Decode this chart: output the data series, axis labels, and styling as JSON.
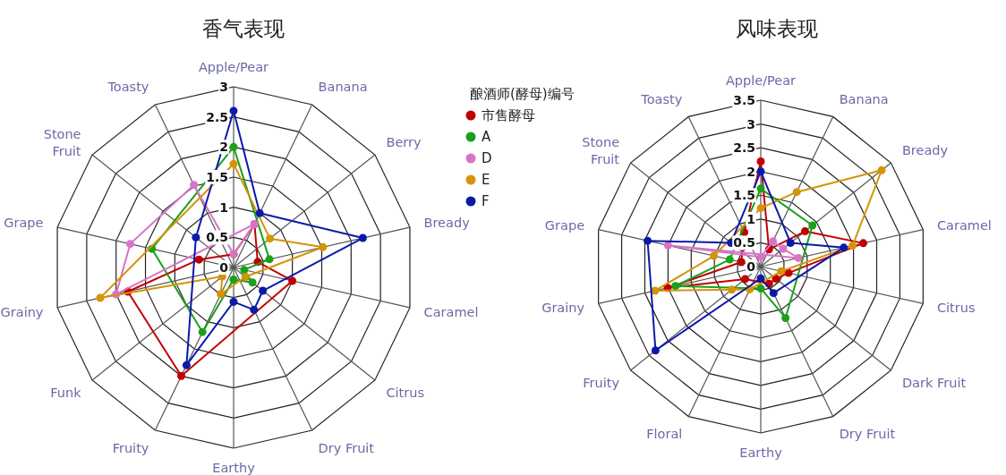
{
  "chart_data": [
    {
      "type": "radar",
      "title": "香气表现",
      "categories": [
        "Apple/Pear",
        "Banana",
        "Berry",
        "Bready",
        "Caramel",
        "Citrus",
        "Dry Fruit",
        "Earthy",
        "Fruity",
        "Funk",
        "Grainy",
        "Grape",
        "Stone Fruit",
        "Toasty"
      ],
      "ylim": [
        0,
        3
      ],
      "yticks": [
        0,
        0.5,
        1,
        1.5,
        2,
        2.5,
        3
      ],
      "legend": "right",
      "legend_title": "酿酒师(酵母)编号",
      "marker": "circle",
      "series": [
        {
          "name": "市售酵母",
          "color": "#c00000",
          "values": [
            0.22,
            0.8,
            null,
            0.41,
            1.0,
            null,
            null,
            null,
            2.0,
            null,
            1.8,
            0.59,
            null,
            null
          ]
        },
        {
          "name": "A",
          "color": "#1aa01a",
          "values": [
            2.0,
            null,
            null,
            0.61,
            0.18,
            0.4,
            null,
            0.2,
            1.19,
            null,
            null,
            1.39,
            null,
            null
          ]
        },
        {
          "name": "D",
          "color": "#d873c8",
          "values": [
            0.22,
            0.8,
            null,
            null,
            null,
            null,
            null,
            null,
            null,
            null,
            2.0,
            1.76,
            null,
            1.52
          ]
        },
        {
          "name": "E",
          "color": "#d4940a",
          "values": [
            1.72,
            null,
            0.77,
            1.52,
            null,
            0.25,
            null,
            null,
            0.49,
            0.24,
            2.27,
            null,
            null,
            null
          ]
        },
        {
          "name": "F",
          "color": "#0a1aa8",
          "values": [
            2.6,
            1.0,
            null,
            2.2,
            null,
            0.62,
            0.78,
            0.57,
            1.8,
            null,
            null,
            null,
            0.8,
            null
          ]
        }
      ]
    },
    {
      "type": "radar",
      "title": "风味表现",
      "categories": [
        "Apple/Pear",
        "Banana",
        "Bready",
        "Caramel",
        "Citrus",
        "Dark Fruit",
        "Dry Fruit",
        "Earthy",
        "Floral",
        "Fruity",
        "Grainy",
        "Grape",
        "Stone Fruit",
        "Toasty"
      ],
      "ylim": [
        0,
        3.5
      ],
      "yticks": [
        0,
        0.5,
        1,
        1.5,
        2,
        2.5,
        3,
        3.5
      ],
      "marker": "circle",
      "series": [
        {
          "color": "#c00000",
          "values": [
            2.21,
            0.4,
            1.19,
            2.21,
            0.6,
            0.41,
            0.4,
            null,
            null,
            0.42,
            2.01,
            0.42,
            null,
            0.8
          ]
        },
        {
          "color": "#1aa01a",
          "values": [
            1.64,
            null,
            1.39,
            null,
            null,
            null,
            1.2,
            0.46,
            null,
            null,
            1.84,
            0.67,
            null,
            null
          ]
        },
        {
          "color": "#d873c8",
          "values": [
            0.2,
            0.59,
            0.6,
            0.81,
            null,
            null,
            null,
            null,
            null,
            null,
            null,
            2.0,
            null,
            null
          ]
        },
        {
          "color": "#d4940a",
          "values": [
            1.23,
            1.74,
            3.25,
            1.98,
            0.44,
            null,
            null,
            null,
            0.53,
            0.78,
            2.28,
            1.01,
            null,
            null
          ]
        },
        {
          "color": "#0a1aa8",
          "values": [
            2.0,
            null,
            0.8,
            1.79,
            null,
            null,
            0.62,
            0.25,
            null,
            2.83,
            null,
            2.44,
            0.8,
            null
          ]
        }
      ]
    }
  ]
}
